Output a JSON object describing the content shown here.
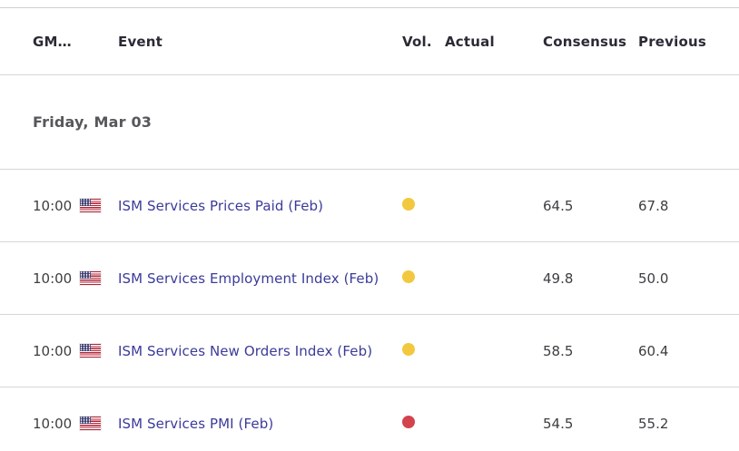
{
  "table": {
    "columns": [
      {
        "key": "gmt",
        "label": "GM…"
      },
      {
        "key": "event",
        "label": "Event"
      },
      {
        "key": "vol",
        "label": "Vol."
      },
      {
        "key": "actual",
        "label": "Actual"
      },
      {
        "key": "consensus",
        "label": "Consensus"
      },
      {
        "key": "previous",
        "label": "Previous"
      }
    ],
    "date_header": "Friday, Mar 03",
    "rows": [
      {
        "time": "10:00",
        "country_flag": "united-states",
        "event": "ISM Services Prices Paid (Feb)",
        "volatility": "medium",
        "actual": "",
        "consensus": "64.5",
        "previous": "67.8"
      },
      {
        "time": "10:00",
        "country_flag": "united-states",
        "event": "ISM Services Employment Index (Feb)",
        "volatility": "medium",
        "actual": "",
        "consensus": "49.8",
        "previous": "50.0"
      },
      {
        "time": "10:00",
        "country_flag": "united-states",
        "event": "ISM Services New Orders Index (Feb)",
        "volatility": "medium",
        "actual": "",
        "consensus": "58.5",
        "previous": "60.4"
      },
      {
        "time": "10:00",
        "country_flag": "united-states",
        "event": "ISM Services PMI (Feb)",
        "volatility": "high",
        "actual": "",
        "consensus": "54.5",
        "previous": "55.2"
      }
    ]
  },
  "volatility_colors": {
    "medium": "#f2c83e",
    "high": "#d2434e"
  },
  "colors": {
    "event_link": "#3b3b9a",
    "divider": "#d6d6d6",
    "header_text": "#2b2b36",
    "body_text": "#3e3e42",
    "date_text": "#57575b"
  }
}
